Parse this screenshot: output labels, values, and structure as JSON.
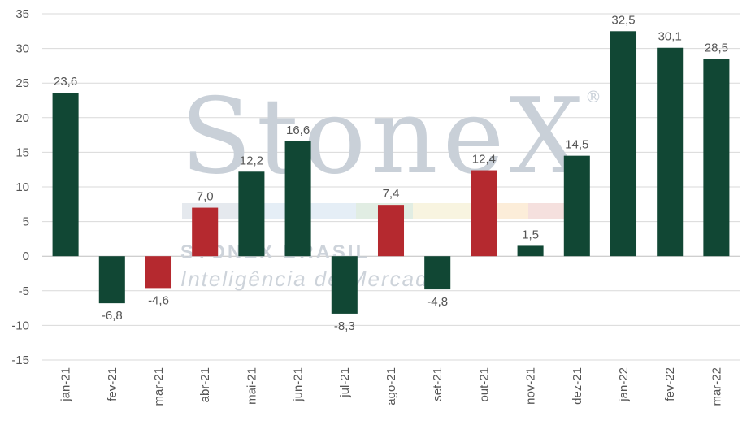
{
  "watermark": {
    "logo_text": "StoneX",
    "registered_mark": "®",
    "line1": "STONEX BRASIL",
    "line2": "Inteligência de Mercado"
  },
  "chart_data": {
    "type": "bar",
    "title": "",
    "xlabel": "",
    "ylabel": "",
    "ylim": [
      -15,
      35
    ],
    "yticks": [
      -15,
      -10,
      -5,
      0,
      5,
      10,
      15,
      20,
      25,
      30,
      35
    ],
    "grid": "horizontal",
    "categories": [
      "jan-21",
      "fev-21",
      "mar-21",
      "abr-21",
      "mai-21",
      "jun-21",
      "jul-21",
      "ago-21",
      "set-21",
      "out-21",
      "nov-21",
      "dez-21",
      "jan-22",
      "fev-22",
      "mar-22"
    ],
    "values": [
      23.6,
      -6.8,
      -4.6,
      7.0,
      12.2,
      16.6,
      -8.3,
      7.4,
      -4.8,
      12.4,
      1.5,
      14.5,
      32.5,
      30.1,
      28.5
    ],
    "value_labels": [
      "23,6",
      "-6,8",
      "-4,6",
      "7,0",
      "12,2",
      "16,6",
      "-8,3",
      "7,4",
      "-4,8",
      "12,4",
      "1,5",
      "14,5",
      "32,5",
      "30,1",
      "28,5"
    ],
    "bar_colors": [
      "#114734",
      "#114734",
      "#b5292f",
      "#b5292f",
      "#114734",
      "#114734",
      "#114734",
      "#b5292f",
      "#114734",
      "#b5292f",
      "#114734",
      "#114734",
      "#114734",
      "#114734",
      "#114734"
    ],
    "colors": {
      "green": "#114734",
      "red": "#b5292f",
      "grid": "#d9d9d9",
      "axis": "#bfbfbf"
    }
  }
}
